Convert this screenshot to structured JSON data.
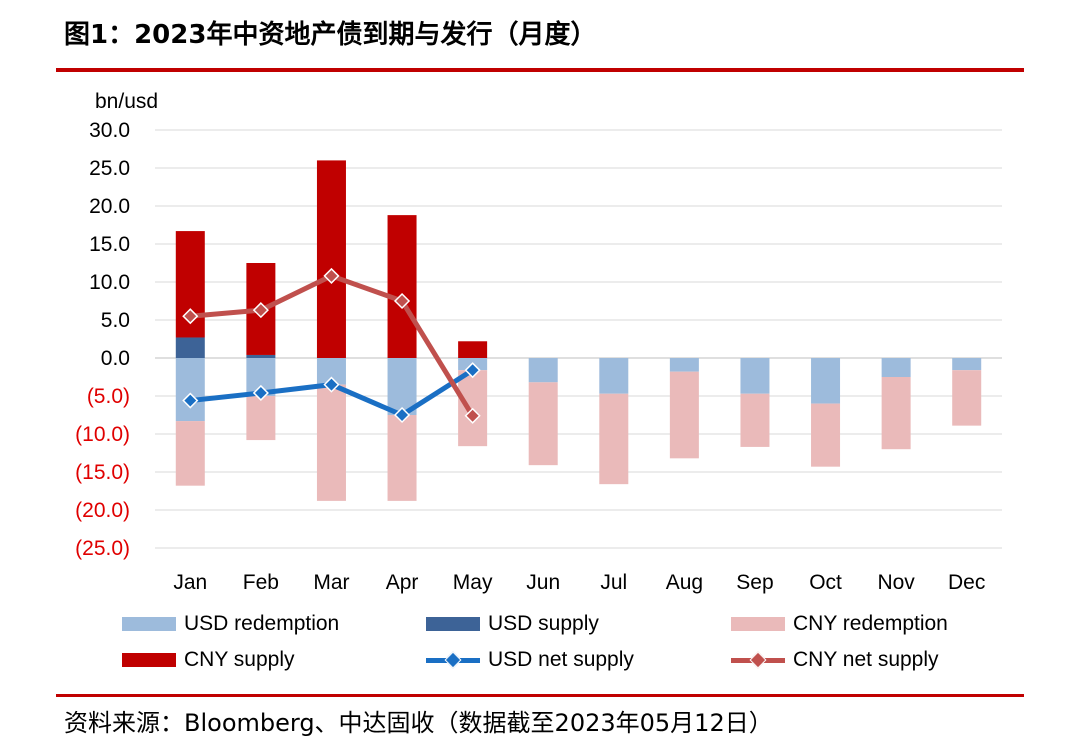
{
  "header": {
    "title": "图1：2023年中资地产债到期与发行（月度）"
  },
  "footer": {
    "source": "资料来源：Bloomberg、中达固收（数据截至2023年05月12日）"
  },
  "chart_data": {
    "type": "bar",
    "title": "图1：2023年中资地产债到期与发行（月度）",
    "ylabel": "bn/usd",
    "xlabel": "",
    "ylim": [
      -25,
      30
    ],
    "yticks": [
      30,
      25,
      20,
      15,
      10,
      5,
      0,
      -5,
      -10,
      -15,
      -20,
      -25
    ],
    "ytick_labels": [
      "30.0",
      "25.0",
      "20.0",
      "15.0",
      "10.0",
      "5.0",
      "0.0",
      "(5.0)",
      "(10.0)",
      "(15.0)",
      "(20.0)",
      "(25.0)"
    ],
    "negative_tick_color": "#e00000",
    "grid": true,
    "categories": [
      "Jan",
      "Feb",
      "Mar",
      "Apr",
      "May",
      "Jun",
      "Jul",
      "Aug",
      "Sep",
      "Oct",
      "Nov",
      "Dec"
    ],
    "series": [
      {
        "name": "USD redemption",
        "type": "bar",
        "color": "#9dbbdc",
        "values": [
          -8.3,
          -5.0,
          -3.5,
          -7.5,
          -1.6,
          -3.2,
          -4.7,
          -1.8,
          -4.7,
          -6.0,
          -2.5,
          -1.6
        ]
      },
      {
        "name": "USD supply",
        "type": "bar",
        "color": "#3d6397",
        "values": [
          2.7,
          0.4,
          0.0,
          0.0,
          0.0,
          0,
          0,
          0,
          0,
          0,
          0,
          0
        ]
      },
      {
        "name": "CNY redemption",
        "type": "bar",
        "color": "#eababa",
        "values": [
          -8.5,
          -5.8,
          -15.3,
          -11.3,
          -10.0,
          -10.9,
          -11.9,
          -11.4,
          -7.0,
          -8.3,
          -9.5,
          -7.3
        ]
      },
      {
        "name": "CNY supply",
        "type": "bar",
        "color": "#c00000",
        "values": [
          14.0,
          12.1,
          26.0,
          18.8,
          2.2,
          0,
          0,
          0,
          0,
          0,
          0,
          0
        ]
      },
      {
        "name": "USD net supply",
        "type": "line",
        "color": "#1a6fc4",
        "values": [
          -5.6,
          -4.6,
          -3.5,
          -7.5,
          -1.6,
          null,
          null,
          null,
          null,
          null,
          null,
          null
        ]
      },
      {
        "name": "CNY net supply",
        "type": "line",
        "color": "#c0504d",
        "values": [
          5.5,
          6.3,
          10.8,
          7.5,
          -7.6,
          null,
          null,
          null,
          null,
          null,
          null,
          null
        ]
      }
    ],
    "legend_position": "bottom"
  }
}
